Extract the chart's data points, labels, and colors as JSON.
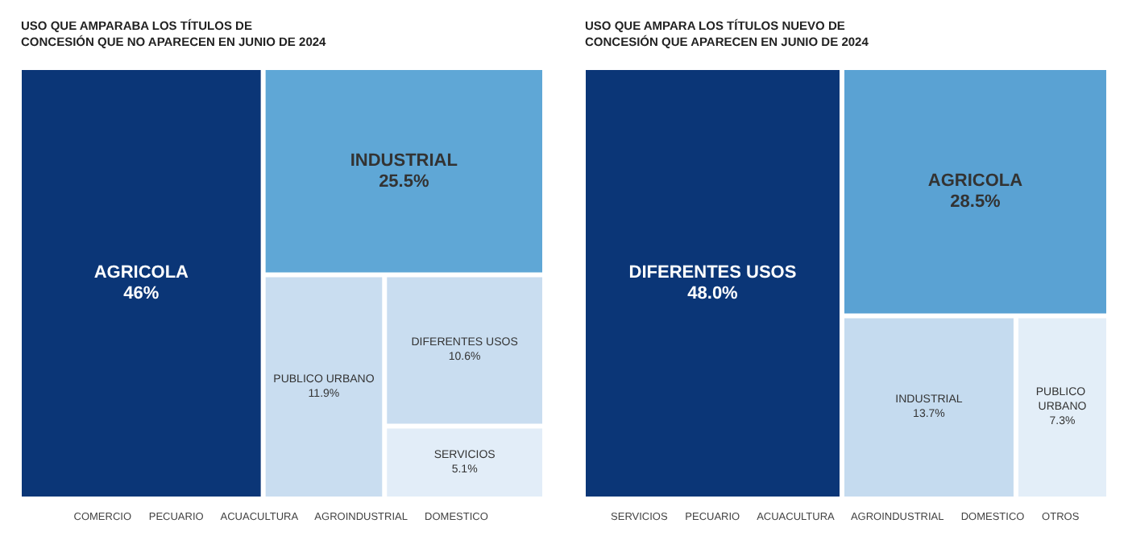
{
  "chart_data": [
    {
      "type": "other",
      "title": "USO QUE AMPARABA LOS TÍTULOS DE CONCESIÓN QUE NO APARECEN EN JUNIO DE 2024",
      "categories": [
        "AGRICOLA",
        "INDUSTRIAL",
        "PUBLICO URBANO",
        "DIFERENTES USOS",
        "SERVICIOS",
        "COMERCIO",
        "PECUARIO",
        "ACUACULTURA",
        "AGROINDUSTRIAL",
        "DOMESTICO"
      ],
      "values": [
        46,
        25.5,
        11.9,
        10.6,
        5.1,
        null,
        null,
        null,
        null,
        null
      ],
      "value_labels": [
        "46%",
        "25.5%",
        "11.9%",
        "10.6%",
        "5.1%",
        null,
        null,
        null,
        null,
        null
      ],
      "colors": [
        "#0b3677",
        "#5fa7d6",
        "#c9ddf0",
        "#c9ddf0",
        "#e2edf8",
        "#e2edf8",
        "#e2edf8",
        "#e2edf8",
        "#e2edf8",
        "#e2edf8"
      ]
    },
    {
      "type": "other",
      "title": "USO QUE AMPARA LOS TÍTULOS NUEVO DE CONCESIÓN QUE APARECEN EN JUNIO DE 2024",
      "categories": [
        "DIFERENTES USOS",
        "AGRICOLA",
        "INDUSTRIAL",
        "PUBLICO URBANO",
        "SERVICIOS",
        "PECUARIO",
        "ACUACULTURA",
        "AGROINDUSTRIAL",
        "DOMESTICO",
        "OTROS"
      ],
      "values": [
        48.0,
        28.5,
        13.7,
        7.3,
        null,
        null,
        null,
        null,
        null,
        null
      ],
      "value_labels": [
        "48.0%",
        "28.5%",
        "13.7%",
        "7.3%",
        null,
        null,
        null,
        null,
        null,
        null
      ],
      "colors": [
        "#0b3677",
        "#5aa2d3",
        "#c5dbef",
        "#e3eef8",
        "#e3eef8",
        "#e3eef8",
        "#e3eef8",
        "#e3eef8",
        "#e3eef8",
        "#e3eef8"
      ]
    }
  ]
}
